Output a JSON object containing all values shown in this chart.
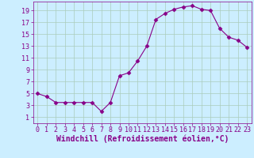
{
  "x": [
    0,
    1,
    2,
    3,
    4,
    5,
    6,
    7,
    8,
    9,
    10,
    11,
    12,
    13,
    14,
    15,
    16,
    17,
    18,
    19,
    20,
    21,
    22,
    23
  ],
  "y": [
    5.0,
    4.5,
    3.5,
    3.5,
    3.5,
    3.5,
    3.5,
    2.0,
    3.5,
    8.0,
    8.5,
    10.5,
    13.0,
    17.5,
    18.5,
    19.2,
    19.6,
    19.8,
    19.2,
    19.0,
    16.0,
    14.5,
    14.0,
    12.8
  ],
  "line_color": "#880088",
  "marker": "D",
  "marker_size": 2.5,
  "bg_color": "#cceeff",
  "grid_color": "#aaccbb",
  "xlabel": "Windchill (Refroidissement éolien,°C)",
  "xlabel_color": "#880088",
  "xlabel_fontsize": 7,
  "tick_color": "#880088",
  "tick_fontsize": 6,
  "yticks": [
    1,
    3,
    5,
    7,
    9,
    11,
    13,
    15,
    17,
    19
  ],
  "xticks": [
    0,
    1,
    2,
    3,
    4,
    5,
    6,
    7,
    8,
    9,
    10,
    11,
    12,
    13,
    14,
    15,
    16,
    17,
    18,
    19,
    20,
    21,
    22,
    23
  ],
  "xlim": [
    -0.5,
    23.5
  ],
  "ylim": [
    0,
    20.5
  ]
}
